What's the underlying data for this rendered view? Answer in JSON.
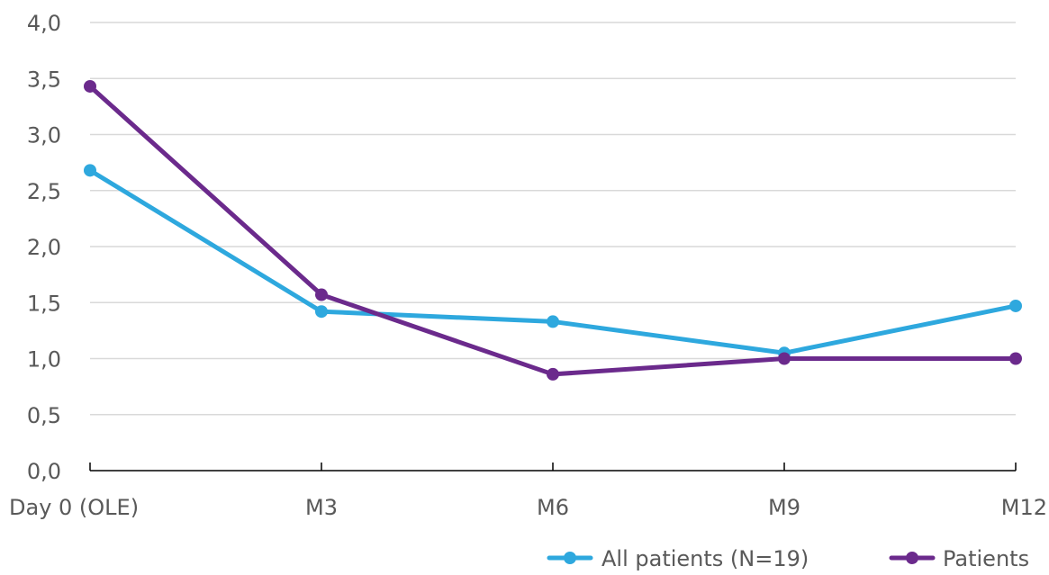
{
  "chart_data": {
    "type": "line",
    "title": "",
    "xlabel": "",
    "ylabel": "",
    "categories": [
      "Day 0 (OLE)",
      "M3",
      "M6",
      "M9",
      "M12"
    ],
    "y_ticks": [
      "0,0",
      "0,5",
      "1,0",
      "1,5",
      "2,0",
      "2,5",
      "3,0",
      "3,5",
      "4,0"
    ],
    "ylim": [
      0,
      4
    ],
    "grid": true,
    "legend_position": "bottom-right",
    "series": [
      {
        "name": "All patients (N=19)",
        "color": "#2ea8de",
        "values": [
          2.68,
          1.42,
          1.33,
          1.05,
          1.47
        ]
      },
      {
        "name": "Patients",
        "color": "#6b2a8c",
        "values": [
          3.43,
          1.57,
          0.86,
          1.0,
          1.0
        ]
      }
    ]
  }
}
